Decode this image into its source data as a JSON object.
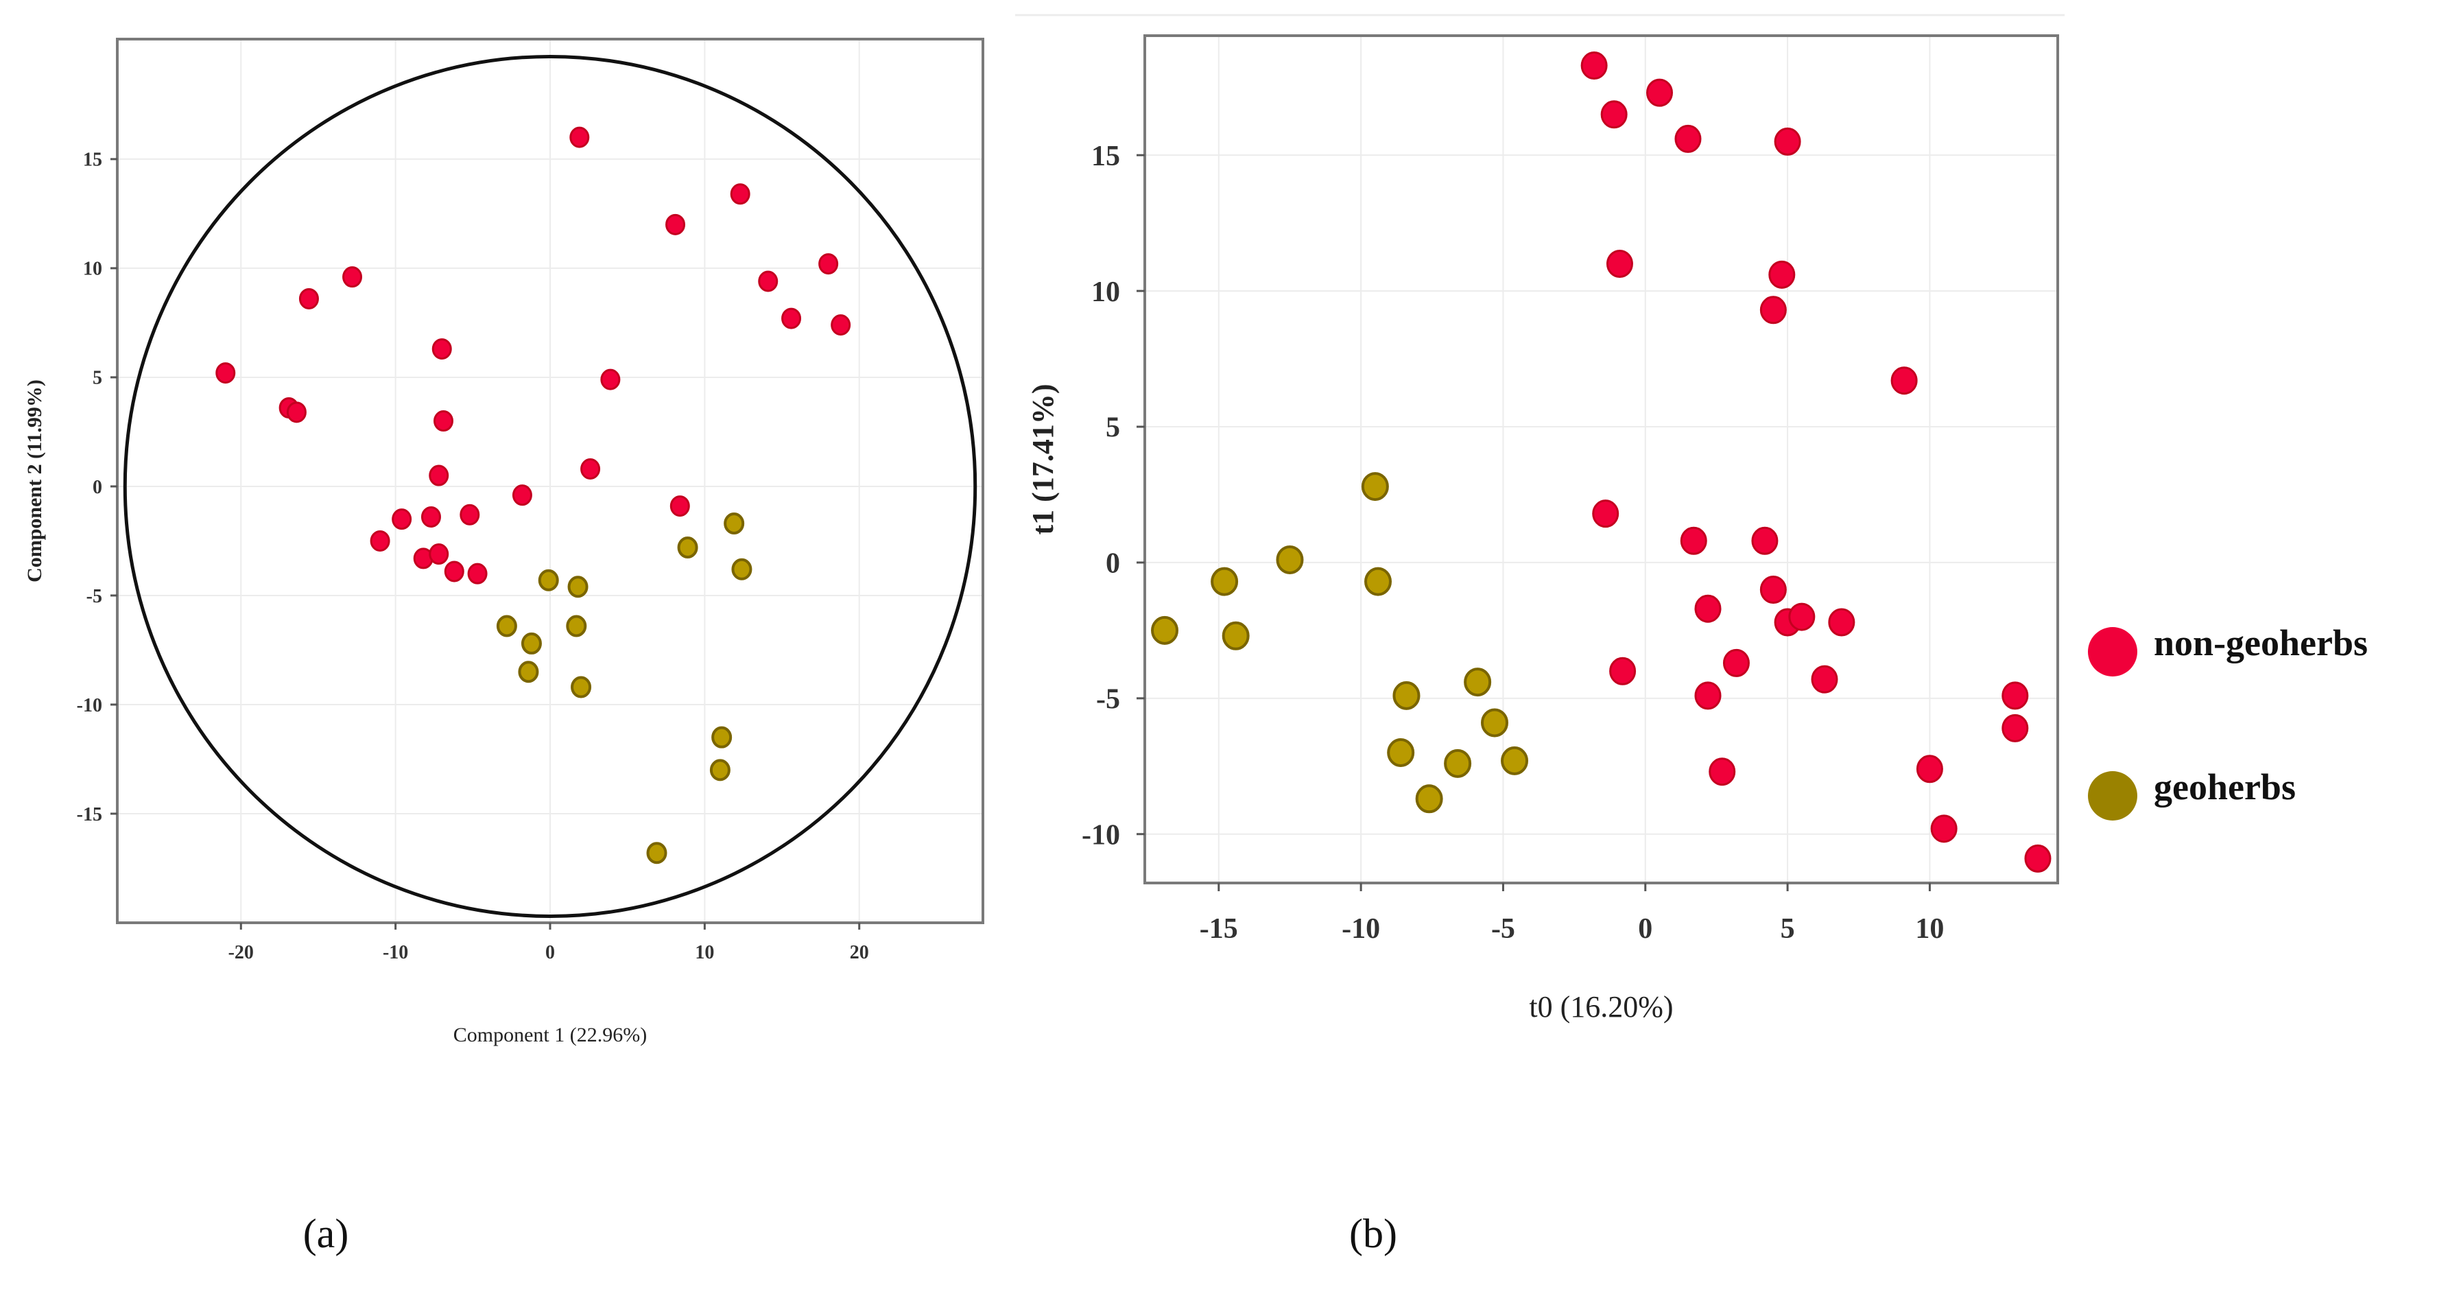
{
  "colors": {
    "non_geoherbs": "#f0003a",
    "geoherbs": "#b89a00",
    "legend_geoherbs": "#9a8200",
    "frame": "#7a7a7a",
    "grid": "#ececec"
  },
  "legend": {
    "items": [
      {
        "label": "non-geoherbs",
        "icon": "red-dot-icon"
      },
      {
        "label": "geoherbs",
        "icon": "olive-dot-icon"
      }
    ]
  },
  "panel_labels": {
    "a": "(a)",
    "b": "(b)"
  },
  "chart_data": [
    {
      "type": "scatter",
      "panel": "(a)",
      "title": "",
      "xlabel": "Component 1 (22.96%)",
      "ylabel": "Component 2 (11.99%)",
      "xlim": [
        -28,
        28
      ],
      "ylim": [
        -20,
        20.5
      ],
      "xticks": [
        -20,
        -10,
        0,
        10,
        20
      ],
      "yticks": [
        -15,
        -10,
        -5,
        0,
        5,
        10,
        15
      ],
      "grid": true,
      "confidence_ellipse": {
        "center": [
          0,
          0
        ],
        "rx": 27.5,
        "ry": 19.7
      },
      "series": [
        {
          "name": "non-geoherbs",
          "points": [
            [
              -21,
              5.2
            ],
            [
              -16.9,
              3.6
            ],
            [
              -16.4,
              3.4
            ],
            [
              -15.6,
              8.6
            ],
            [
              -12.8,
              9.6
            ],
            [
              -11,
              -2.5
            ],
            [
              -9.6,
              -1.5
            ],
            [
              -8.2,
              -3.3
            ],
            [
              -7.7,
              -1.4
            ],
            [
              -7.2,
              -3.1
            ],
            [
              -7.2,
              0.5
            ],
            [
              -7,
              6.3
            ],
            [
              -6.9,
              3.0
            ],
            [
              -6.2,
              -3.9
            ],
            [
              -5.2,
              -1.3
            ],
            [
              -4.7,
              -4.0
            ],
            [
              -1.8,
              -0.4
            ],
            [
              1.9,
              16.0
            ],
            [
              2.6,
              0.8
            ],
            [
              3.9,
              4.9
            ],
            [
              8.1,
              12.0
            ],
            [
              8.4,
              -0.9
            ],
            [
              12.3,
              13.4
            ],
            [
              14.1,
              9.4
            ],
            [
              15.6,
              7.7
            ],
            [
              18,
              10.2
            ],
            [
              18.8,
              7.4
            ]
          ]
        },
        {
          "name": "geoherbs",
          "points": [
            [
              -0.1,
              -4.3
            ],
            [
              1.8,
              -4.6
            ],
            [
              11.9,
              -1.7
            ],
            [
              8.9,
              -2.8
            ],
            [
              12.4,
              -3.8
            ],
            [
              -2.8,
              -6.4
            ],
            [
              -1.2,
              -7.2
            ],
            [
              1.7,
              -6.4
            ],
            [
              -1.4,
              -8.5
            ],
            [
              2.0,
              -9.2
            ],
            [
              11.1,
              -11.5
            ],
            [
              11.0,
              -13.0
            ],
            [
              6.9,
              -16.8
            ]
          ]
        }
      ]
    },
    {
      "type": "scatter",
      "panel": "(b)",
      "title": "",
      "xlabel": "t0 (16.20%)",
      "ylabel": "t1 (17.41%)",
      "xlim": [
        -17.6,
        14.5
      ],
      "ylim": [
        -11.8,
        19.4
      ],
      "xticks": [
        -15,
        -10,
        -5,
        0,
        5,
        10
      ],
      "yticks": [
        -10,
        -5,
        0,
        5,
        10,
        15
      ],
      "grid": true,
      "series": [
        {
          "name": "non-geoherbs",
          "points": [
            [
              -1.8,
              18.3
            ],
            [
              -1.1,
              16.5
            ],
            [
              0.5,
              17.3
            ],
            [
              1.5,
              15.6
            ],
            [
              5.0,
              15.5
            ],
            [
              -0.9,
              11.0
            ],
            [
              4.8,
              10.6
            ],
            [
              4.5,
              9.3
            ],
            [
              9.1,
              6.7
            ],
            [
              -1.4,
              1.8
            ],
            [
              1.7,
              0.8
            ],
            [
              4.2,
              0.8
            ],
            [
              4.5,
              -1.0
            ],
            [
              2.2,
              -1.7
            ],
            [
              5.0,
              -2.2
            ],
            [
              5.5,
              -2.0
            ],
            [
              6.9,
              -2.2
            ],
            [
              3.2,
              -3.7
            ],
            [
              -0.8,
              -4.0
            ],
            [
              2.2,
              -4.9
            ],
            [
              6.3,
              -4.3
            ],
            [
              13.0,
              -4.9
            ],
            [
              13.0,
              -6.1
            ],
            [
              2.7,
              -7.7
            ],
            [
              10.0,
              -7.6
            ],
            [
              10.5,
              -9.8
            ],
            [
              13.8,
              -10.9
            ]
          ]
        },
        {
          "name": "geoherbs",
          "points": [
            [
              -16.9,
              -2.5
            ],
            [
              -14.8,
              -0.7
            ],
            [
              -14.4,
              -2.7
            ],
            [
              -12.5,
              0.1
            ],
            [
              -9.5,
              2.8
            ],
            [
              -9.4,
              -0.7
            ],
            [
              -8.4,
              -4.9
            ],
            [
              -8.6,
              -7.0
            ],
            [
              -7.6,
              -8.7
            ],
            [
              -6.6,
              -7.4
            ],
            [
              -5.9,
              -4.4
            ],
            [
              -5.3,
              -5.9
            ],
            [
              -4.6,
              -7.3
            ]
          ]
        }
      ]
    }
  ]
}
